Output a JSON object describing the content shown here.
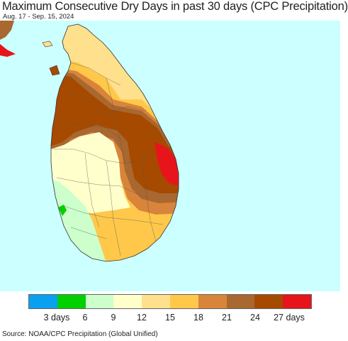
{
  "header": {
    "title": "Maximum Consecutive Dry Days in past 30 days (CPC Precipitation)",
    "subtitle": "Aug. 17 - Sep. 15, 2024"
  },
  "legend": {
    "colors": [
      "#0aa0f0",
      "#00d000",
      "#ccffcc",
      "#ffffcc",
      "#ffe08c",
      "#ffc84a",
      "#d8843a",
      "#a86830",
      "#a64a00",
      "#e8141c"
    ],
    "ticks": [
      "3 days",
      "6",
      "9",
      "12",
      "15",
      "18",
      "21",
      "24",
      "27 days"
    ]
  },
  "map": {
    "region": "Sri Lanka",
    "ocean_color": "#ccffff",
    "zone_colors": {
      "very_dry": "#e8141c",
      "dry_27": "#a64a00",
      "dry_24": "#a86830",
      "dry_21": "#d8843a",
      "dry_18": "#ffc84a",
      "dry_15": "#ffe08c",
      "dry_12": "#ffffcc",
      "dry_9": "#ccffcc",
      "dry_6": "#00d000"
    }
  },
  "footer": {
    "source": "Source: NOAA/CPC Precipitation (Global Unified)"
  }
}
